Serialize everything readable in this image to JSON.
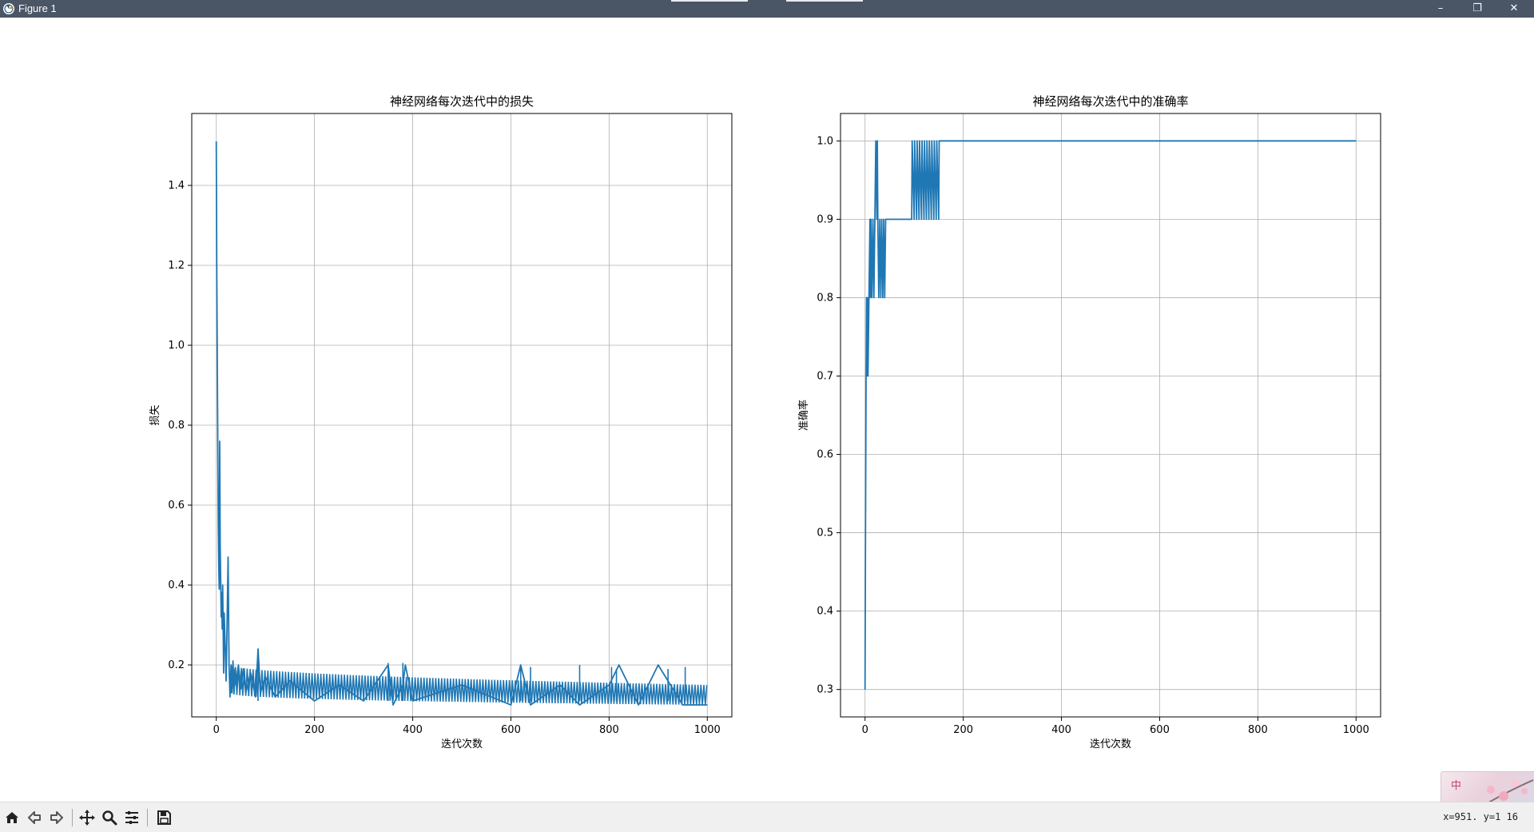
{
  "window": {
    "title": "Figure 1",
    "controls": {
      "minimize": "–",
      "maximize": "❐",
      "close": "✕"
    }
  },
  "toolbar": {
    "buttons": [
      "home-icon",
      "back-icon",
      "forward-icon",
      "pan-icon",
      "zoom-icon",
      "configure-subplots-icon",
      "save-icon"
    ],
    "coord_readout": "x=951. y=1 16"
  },
  "ime": {
    "label": "中"
  },
  "colors": {
    "line": "#1f77b4",
    "grid": "#b0b0b0",
    "titlebar": "#4a5566"
  },
  "chart_data": [
    {
      "type": "line",
      "title": "神经网络每次迭代中的损失",
      "xlabel": "迭代次数",
      "ylabel": "损失",
      "xlim": [
        -50,
        1050
      ],
      "ylim": [
        0.07,
        1.58
      ],
      "xticks": [
        0,
        200,
        400,
        600,
        800,
        1000
      ],
      "yticks": [
        0.2,
        0.4,
        0.6,
        0.8,
        1.0,
        1.2,
        1.4
      ],
      "xtick_labels": [
        "0",
        "200",
        "400",
        "600",
        "800",
        "1000"
      ],
      "ytick_labels": [
        "0.2",
        "0.4",
        "0.6",
        "0.8",
        "1.0",
        "1.2",
        "1.4"
      ],
      "grid": true,
      "series": [
        {
          "x": [
            0,
            1,
            2,
            3,
            4,
            5,
            6,
            7,
            8,
            9,
            10,
            11,
            12,
            13,
            14,
            15,
            16,
            18,
            20,
            22,
            24,
            26,
            28,
            30,
            32,
            34,
            36,
            38,
            40,
            45,
            50,
            55,
            60,
            70,
            80,
            85,
            90,
            100,
            120,
            150,
            200,
            250,
            300,
            350,
            360,
            380,
            385,
            400,
            500,
            600,
            620,
            640,
            700,
            740,
            800,
            820,
            860,
            900,
            950,
            1000
          ],
          "y": [
            1.51,
            1.2,
            0.95,
            0.75,
            0.55,
            0.45,
            0.39,
            0.76,
            0.5,
            0.4,
            0.32,
            0.38,
            0.29,
            0.4,
            0.3,
            0.18,
            0.33,
            0.25,
            0.16,
            0.3,
            0.47,
            0.2,
            0.12,
            0.2,
            0.13,
            0.21,
            0.14,
            0.19,
            0.15,
            0.2,
            0.14,
            0.19,
            0.13,
            0.18,
            0.12,
            0.24,
            0.13,
            0.17,
            0.12,
            0.16,
            0.11,
            0.15,
            0.11,
            0.2,
            0.1,
            0.15,
            0.2,
            0.11,
            0.15,
            0.1,
            0.2,
            0.1,
            0.15,
            0.1,
            0.15,
            0.2,
            0.1,
            0.2,
            0.1,
            0.1
          ],
          "band": {
            "x_start": 30,
            "x_end": 1000,
            "upper_start": 0.2,
            "upper_end": 0.15,
            "lower_start": 0.13,
            "lower_end": 0.1
          },
          "spikes": [
            [
              85,
              0.24
            ],
            [
              350,
              0.205
            ],
            [
              380,
              0.205
            ],
            [
              620,
              0.2
            ],
            [
              640,
              0.195
            ],
            [
              740,
              0.2
            ],
            [
              805,
              0.195
            ],
            [
              815,
              0.19
            ],
            [
              920,
              0.19
            ],
            [
              955,
              0.195
            ]
          ]
        }
      ]
    },
    {
      "type": "line",
      "title": "神经网络每次迭代中的准确率",
      "xlabel": "迭代次数",
      "ylabel": "准确率",
      "xlim": [
        -50,
        1050
      ],
      "ylim": [
        0.265,
        1.035
      ],
      "xticks": [
        0,
        200,
        400,
        600,
        800,
        1000
      ],
      "yticks": [
        0.3,
        0.4,
        0.5,
        0.6,
        0.7,
        0.8,
        0.9,
        1.0
      ],
      "xtick_labels": [
        "0",
        "200",
        "400",
        "600",
        "800",
        "1000"
      ],
      "ytick_labels": [
        "0.3",
        "0.4",
        "0.5",
        "0.6",
        "0.7",
        "0.8",
        "0.9",
        "1.0"
      ],
      "grid": true,
      "series": [
        {
          "x": [
            0,
            1,
            2,
            3,
            4,
            5,
            6,
            8,
            10,
            11,
            12,
            14,
            16,
            18,
            20,
            22,
            24,
            25,
            26,
            28,
            30,
            32,
            34,
            36,
            38,
            40,
            42,
            44,
            95,
            96,
            100,
            101,
            105,
            106,
            110,
            111,
            115,
            116,
            120,
            121,
            125,
            126,
            130,
            131,
            135,
            136,
            140,
            141,
            145,
            146,
            150,
            151,
            1000
          ],
          "y": [
            0.3,
            0.5,
            0.7,
            0.8,
            0.7,
            0.8,
            0.7,
            0.8,
            0.9,
            0.8,
            0.9,
            0.8,
            0.9,
            0.8,
            0.9,
            1.0,
            0.9,
            1.0,
            0.9,
            0.8,
            0.9,
            0.8,
            0.9,
            0.8,
            0.9,
            0.8,
            0.9,
            0.9,
            0.9,
            1.0,
            0.9,
            1.0,
            0.9,
            1.0,
            0.9,
            1.0,
            0.9,
            1.0,
            0.9,
            1.0,
            0.9,
            1.0,
            0.9,
            1.0,
            0.9,
            1.0,
            0.9,
            1.0,
            0.9,
            1.0,
            0.9,
            1.0,
            1.0
          ]
        }
      ]
    }
  ]
}
